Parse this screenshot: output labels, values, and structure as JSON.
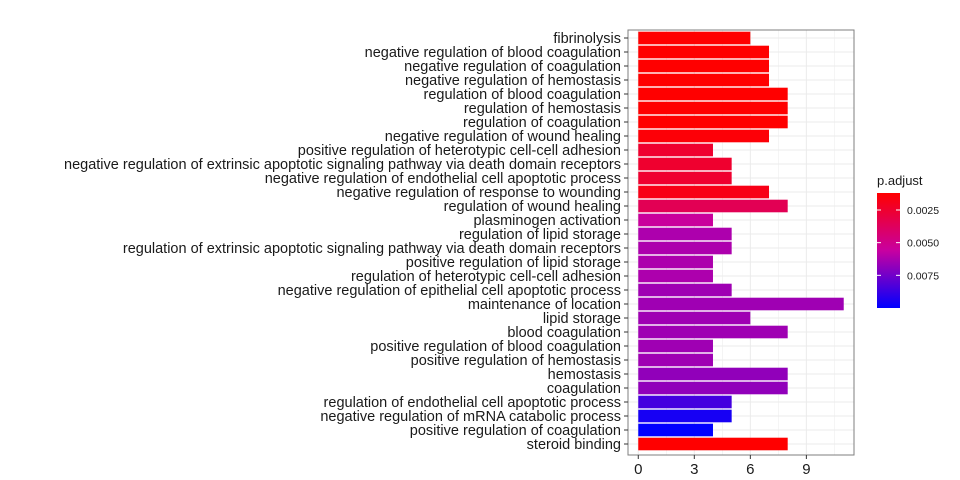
{
  "chart_data": {
    "type": "bar",
    "orientation": "horizontal",
    "categories": [
      "fibrinolysis",
      "negative regulation of blood coagulation",
      "negative regulation of coagulation",
      "negative regulation of hemostasis",
      "regulation of blood coagulation",
      "regulation of hemostasis",
      "regulation of coagulation",
      "negative regulation of wound healing",
      "positive regulation of heterotypic cell-cell adhesion",
      "negative regulation of extrinsic apoptotic signaling pathway via death domain receptors",
      "negative regulation of endothelial cell apoptotic process",
      "negative regulation of response to wounding",
      "regulation of wound healing",
      "plasminogen activation",
      "regulation of lipid storage",
      "regulation of extrinsic apoptotic signaling pathway via death domain receptors",
      "positive regulation of lipid storage",
      "regulation of heterotypic cell-cell adhesion",
      "negative regulation of epithelial cell apoptotic process",
      "maintenance of location",
      "lipid storage",
      "blood coagulation",
      "positive regulation of blood coagulation",
      "positive regulation of hemostasis",
      "hemostasis",
      "coagulation",
      "regulation of endothelial cell apoptotic process",
      "negative regulation of mRNA catabolic process",
      "positive regulation of coagulation",
      "steroid binding"
    ],
    "values": [
      6,
      7,
      7,
      7,
      8,
      8,
      8,
      7,
      4,
      5,
      5,
      7,
      8,
      4,
      5,
      5,
      4,
      4,
      5,
      11,
      6,
      8,
      4,
      4,
      8,
      8,
      5,
      5,
      4,
      8
    ],
    "p_adjust": [
      0.0012,
      0.0012,
      0.0012,
      0.0012,
      0.0012,
      0.0012,
      0.0012,
      0.0014,
      0.0025,
      0.0025,
      0.0025,
      0.0018,
      0.0035,
      0.0055,
      0.0062,
      0.0062,
      0.0062,
      0.0062,
      0.0065,
      0.0065,
      0.0065,
      0.0065,
      0.0065,
      0.0065,
      0.0068,
      0.0068,
      0.0085,
      0.0095,
      0.01,
      0.0012
    ],
    "xticks": [
      0,
      3,
      6,
      9
    ],
    "xlim": [
      -0.55,
      11.55
    ],
    "grid": true,
    "legend": {
      "title": "p.adjust",
      "placement": "right",
      "ticks": [
        "0.0025",
        "0.0050",
        "0.0075"
      ],
      "tick_values": [
        0.0025,
        0.005,
        0.0075
      ],
      "range": [
        0.0012,
        0.01
      ],
      "colors": {
        "low": "#ff0000",
        "high": "#0000ff"
      }
    },
    "colors": {
      "grid": "#ebebeb",
      "panel_border": "#7f7f7f"
    }
  }
}
